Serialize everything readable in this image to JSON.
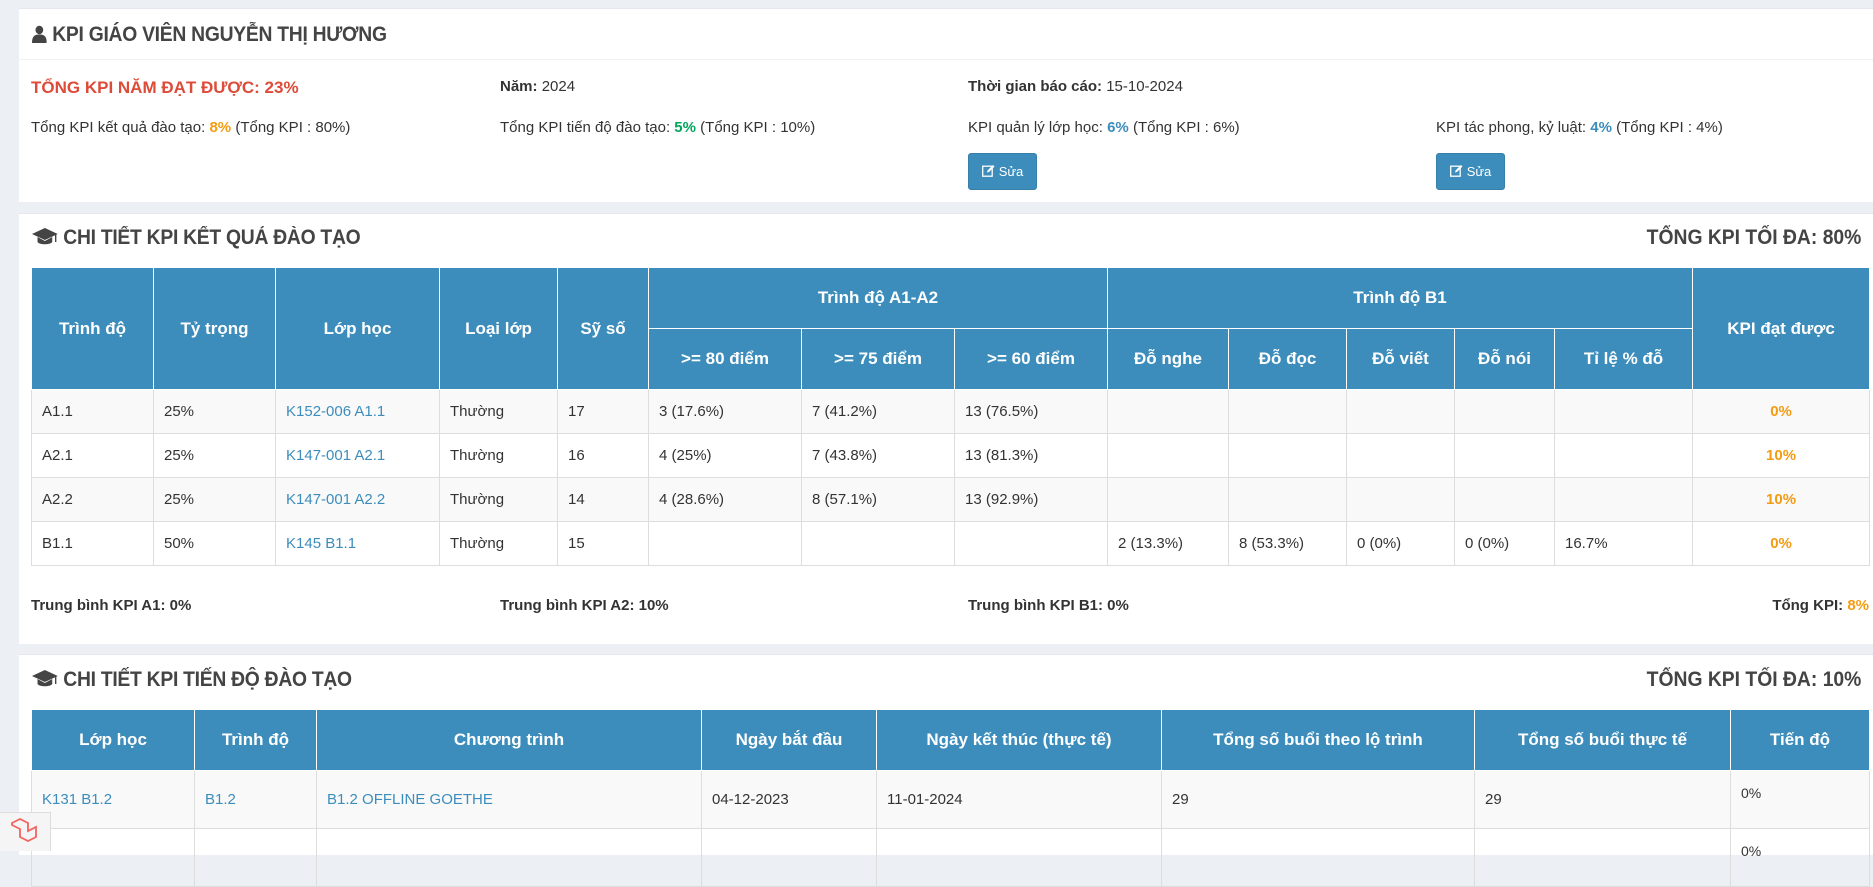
{
  "summary": {
    "title": "KPI GIÁO VIÊN NGUYỄN THỊ HƯƠNG",
    "total_label": "TỔNG KPI NĂM ĐẠT ĐƯỢC: 23%",
    "year_label": "Năm:",
    "year_value": "2024",
    "report_label": "Thời gian báo cáo:",
    "report_value": "15-10-2024",
    "kpi_result_label": "Tổng KPI kết quả đào tạo:",
    "kpi_result_value": "8%",
    "kpi_result_total": "(Tổng KPI : 80%)",
    "kpi_progress_label": "Tổng KPI tiến độ đào tạo:",
    "kpi_progress_value": "5%",
    "kpi_progress_total": "(Tổng KPI : 10%)",
    "kpi_class_label": "KPI quản lý lớp học:",
    "kpi_class_value": "6%",
    "kpi_class_total": "(Tổng KPI : 6%)",
    "kpi_conduct_label": "KPI tác phong, kỷ luật:",
    "kpi_conduct_value": "4%",
    "kpi_conduct_total": "(Tổng KPI : 4%)",
    "edit_label": "Sửa"
  },
  "results": {
    "title": "CHI TIẾT KPI KẾT QUẢ ĐÀO TẠO",
    "max_label": "TỔNG KPI TỐI ĐA: 80%",
    "headers": {
      "level": "Trình độ",
      "weight": "Tỷ trọng",
      "class": "Lớp học",
      "type": "Loại lớp",
      "size": "Sỹ số",
      "a1a2": "Trình độ A1-A2",
      "b1": "Trình độ B1",
      "kpi": "KPI đạt được",
      "p80": ">= 80 điểm",
      "p75": ">= 75 điểm",
      "p60": ">= 60 điểm",
      "listen": "Đỗ nghe",
      "read": "Đỗ đọc",
      "write": "Đỗ viết",
      "speak": "Đỗ nói",
      "rate": "Tỉ lệ % đỗ"
    },
    "rows": [
      {
        "level": "A1.1",
        "weight": "25%",
        "class": "K152-006 A1.1",
        "type": "Thường",
        "size": "17",
        "p80": "3 (17.6%)",
        "p75": "7 (41.2%)",
        "p60": "13 (76.5%)",
        "listen": "",
        "read": "",
        "write": "",
        "speak": "",
        "rate": "",
        "kpi": "0%"
      },
      {
        "level": "A2.1",
        "weight": "25%",
        "class": "K147-001 A2.1",
        "type": "Thường",
        "size": "16",
        "p80": "4 (25%)",
        "p75": "7 (43.8%)",
        "p60": "13 (81.3%)",
        "listen": "",
        "read": "",
        "write": "",
        "speak": "",
        "rate": "",
        "kpi": "10%"
      },
      {
        "level": "A2.2",
        "weight": "25%",
        "class": "K147-001 A2.2",
        "type": "Thường",
        "size": "14",
        "p80": "4 (28.6%)",
        "p75": "8 (57.1%)",
        "p60": "13 (92.9%)",
        "listen": "",
        "read": "",
        "write": "",
        "speak": "",
        "rate": "",
        "kpi": "10%"
      },
      {
        "level": "B1.1",
        "weight": "50%",
        "class": "K145 B1.1",
        "type": "Thường",
        "size": "15",
        "p80": "",
        "p75": "",
        "p60": "",
        "listen": "2 (13.3%)",
        "read": "8 (53.3%)",
        "write": "0 (0%)",
        "speak": "0 (0%)",
        "rate": "16.7%",
        "kpi": "0%"
      }
    ],
    "avg_a1": "Trung bình KPI A1: 0%",
    "avg_a2": "Trung bình KPI A2: 10%",
    "avg_b1": "Trung bình KPI B1: 0%",
    "total_label": "Tổng KPI:",
    "total_value": "8%"
  },
  "progress": {
    "title": "CHI TIẾT KPI TIẾN ĐỘ ĐÀO TẠO",
    "max_label": "TỔNG KPI TỐI ĐA: 10%",
    "headers": {
      "class": "Lớp học",
      "level": "Trình độ",
      "program": "Chương trình",
      "start": "Ngày bắt đầu",
      "end": "Ngày kết thúc (thực tế)",
      "planned": "Tổng số buổi theo lộ trình",
      "actual": "Tổng số buổi thực tế",
      "progress": "Tiến độ"
    },
    "rows": [
      {
        "class": "K131 B1.2",
        "level": "B1.2",
        "program": "B1.2 OFFLINE GOETHE",
        "start": "04-12-2023",
        "end": "11-01-2024",
        "planned": "29",
        "actual": "29",
        "progress": "0%"
      },
      {
        "class": "",
        "level": "",
        "program": "",
        "start": "",
        "end": "",
        "planned": "",
        "actual": "",
        "progress": "0%"
      }
    ]
  }
}
